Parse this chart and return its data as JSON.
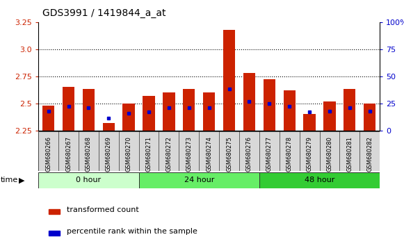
{
  "title": "GDS3991 / 1419844_a_at",
  "samples": [
    "GSM680266",
    "GSM680267",
    "GSM680268",
    "GSM680269",
    "GSM680270",
    "GSM680271",
    "GSM680272",
    "GSM680273",
    "GSM680274",
    "GSM680275",
    "GSM680276",
    "GSM680277",
    "GSM680278",
    "GSM680279",
    "GSM680280",
    "GSM680281",
    "GSM680282"
  ],
  "red_bar_tops": [
    2.48,
    2.65,
    2.63,
    2.32,
    2.5,
    2.57,
    2.6,
    2.63,
    2.6,
    3.18,
    2.78,
    2.72,
    2.62,
    2.4,
    2.52,
    2.63,
    2.5
  ],
  "blue_dot_y": [
    2.43,
    2.47,
    2.46,
    2.36,
    2.41,
    2.42,
    2.46,
    2.46,
    2.46,
    2.63,
    2.52,
    2.5,
    2.47,
    2.42,
    2.43,
    2.46,
    2.43
  ],
  "bar_bottom": 2.25,
  "ylim": [
    2.25,
    3.25
  ],
  "yticks_left": [
    2.25,
    2.5,
    2.75,
    3.0,
    3.25
  ],
  "yticks_right": [
    0,
    25,
    50,
    75,
    100
  ],
  "groups": [
    {
      "label": "0 hour",
      "start": 0,
      "end": 5,
      "color": "#ccffcc"
    },
    {
      "label": "24 hour",
      "start": 5,
      "end": 11,
      "color": "#66ee66"
    },
    {
      "label": "48 hour",
      "start": 11,
      "end": 17,
      "color": "#33cc33"
    }
  ],
  "bar_color": "#cc2200",
  "dot_color": "#0000cc",
  "bar_width": 0.6,
  "legend_items": [
    "transformed count",
    "percentile rank within the sample"
  ],
  "grid_linestyle": "dotted",
  "tick_color_left": "#cc2200",
  "tick_color_right": "#0000cc",
  "xticklabel_bg": "#d8d8d8"
}
